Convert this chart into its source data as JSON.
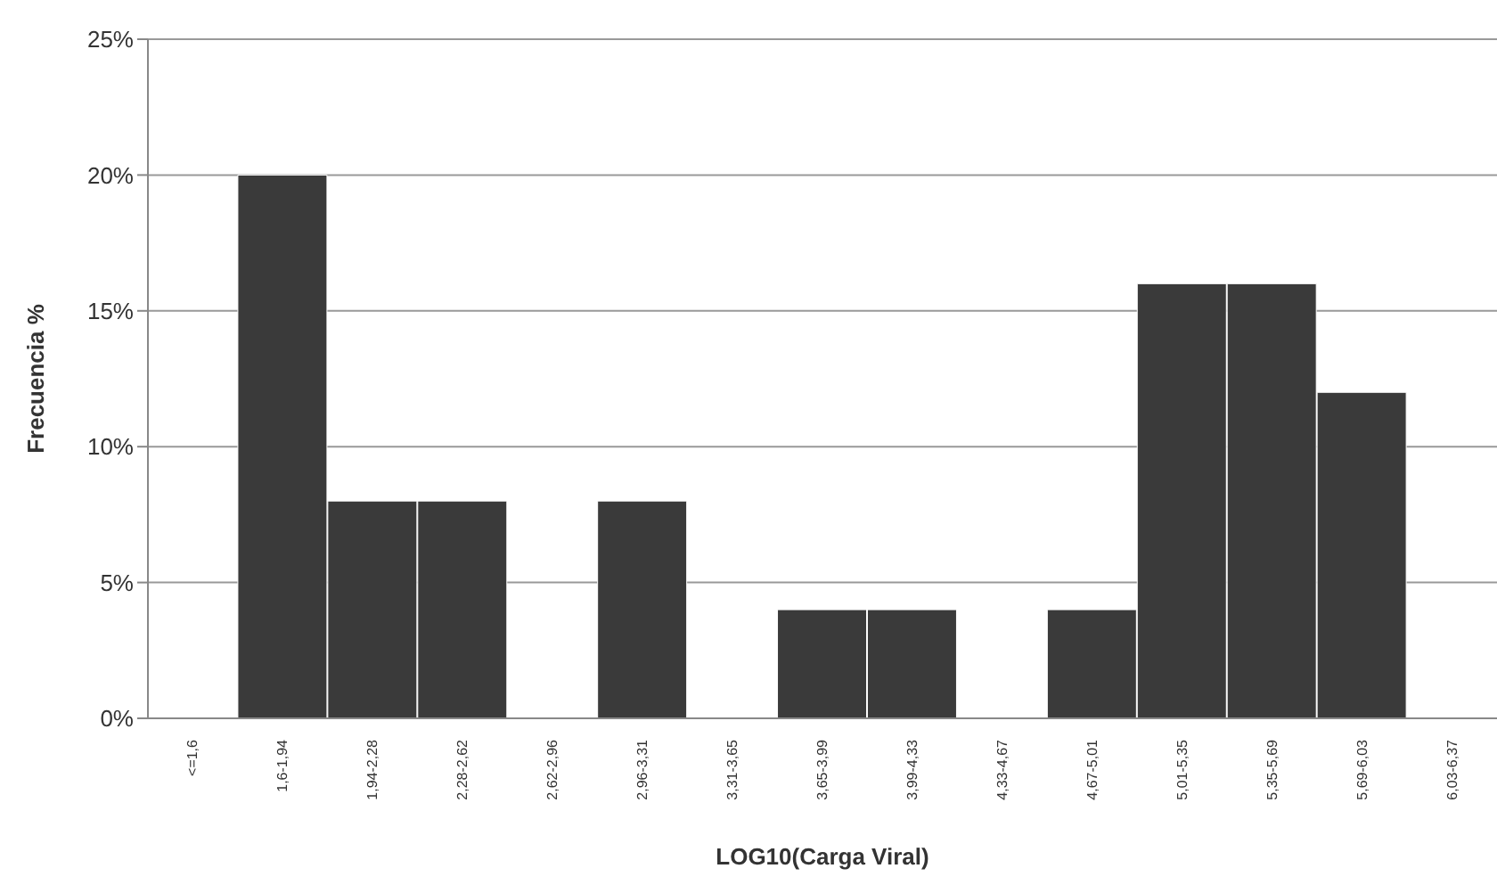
{
  "chart_data": {
    "type": "bar",
    "xlabel": "LOG10(Carga Viral)",
    "ylabel": "Frecuencia %",
    "categories": [
      "<=1,6",
      "1,6-1,94",
      "1,94-2,28",
      "2,28-2,62",
      "2,62-2,96",
      "2,96-3,31",
      "3,31-3,65",
      "3,65-3,99",
      "3,99-4,33",
      "4,33-4,67",
      "4,67-5,01",
      "5,01-5,35",
      "5,35-5,69",
      "5,69-6,03",
      "6,03-6,37"
    ],
    "values": [
      0,
      20,
      8,
      8,
      0,
      8,
      0,
      4,
      4,
      0,
      4,
      16,
      16,
      12,
      0
    ],
    "color": "#3a3a3a",
    "ylim": [
      0,
      25
    ],
    "yticks": [
      {
        "value": 0,
        "label": "0%"
      },
      {
        "value": 5,
        "label": "5%"
      },
      {
        "value": 10,
        "label": "10%"
      },
      {
        "value": 15,
        "label": "15%"
      },
      {
        "value": 20,
        "label": "20%"
      },
      {
        "value": 25,
        "label": "25%"
      }
    ],
    "grid": "y"
  }
}
